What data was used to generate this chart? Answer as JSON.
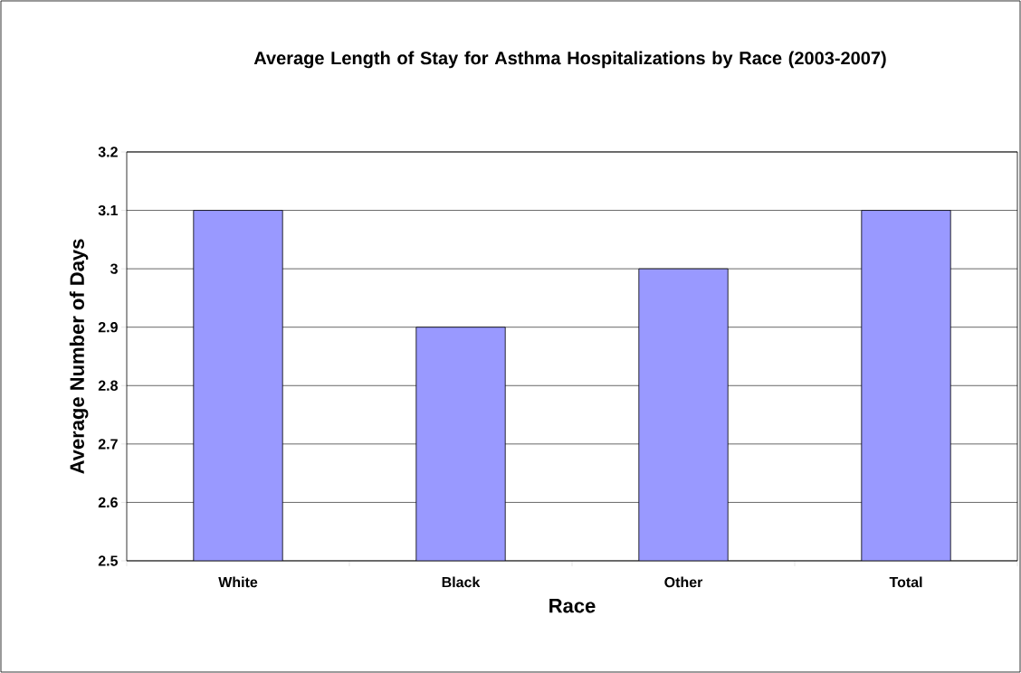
{
  "chart_data": {
    "type": "bar",
    "title": "Average Length of Stay for Asthma Hospitalizations by Race (2003-2007)",
    "xlabel": "Race",
    "ylabel": "Average Number of Days",
    "categories": [
      "White",
      "Black",
      "Other",
      "Total"
    ],
    "values": [
      3.1,
      2.9,
      3.0,
      3.1
    ],
    "color": "#9999ff",
    "ylim": [
      2.5,
      3.2
    ],
    "yticks": [
      2.5,
      2.6,
      2.7,
      2.8,
      2.9,
      3,
      3.1,
      3.2
    ],
    "grid": "y"
  }
}
